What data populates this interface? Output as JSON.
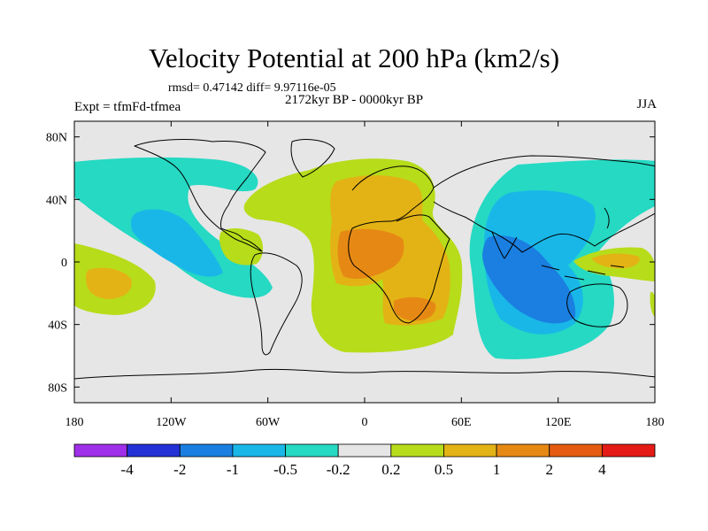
{
  "header": {
    "title": "Velocity Potential at 200 hPa (km2/s)",
    "stats": "rmsd= 0.47142  diff= 9.97116e-05",
    "subtitle": "2172kyr BP - 0000kyr BP",
    "experiment": "Expt = tfmFd-tfmea",
    "season": "JJA"
  },
  "chart_data": {
    "type": "heatmap",
    "title": "Velocity Potential at 200 hPa (km2/s)",
    "projection": "cylindrical-equidistant",
    "xlim": [
      -180,
      180
    ],
    "ylim": [
      -90,
      90
    ],
    "x_ticks": [
      {
        "value": -180,
        "label": "180"
      },
      {
        "value": -120,
        "label": "120W"
      },
      {
        "value": -60,
        "label": "60W"
      },
      {
        "value": 0,
        "label": "0"
      },
      {
        "value": 60,
        "label": "60E"
      },
      {
        "value": 120,
        "label": "120E"
      },
      {
        "value": 180,
        "label": "180"
      }
    ],
    "y_ticks": [
      {
        "value": 80,
        "label": "80N"
      },
      {
        "value": 40,
        "label": "40N"
      },
      {
        "value": 0,
        "label": "0"
      },
      {
        "value": -40,
        "label": "40S"
      },
      {
        "value": -80,
        "label": "80S"
      }
    ],
    "contour_levels": [
      -4,
      -2,
      -1,
      -0.5,
      -0.2,
      0.2,
      0.5,
      1,
      2,
      4
    ],
    "colorbar": {
      "labels": [
        "-4",
        "-2",
        "-1",
        "-0.5",
        "-0.2",
        "0.2",
        "0.5",
        "1",
        "2",
        "4"
      ],
      "colors": [
        "#9f2fe8",
        "#2431d6",
        "#1a7fe0",
        "#19b7e8",
        "#25d9c3",
        "#e6e6e6",
        "#b7dc1a",
        "#e3b315",
        "#e68914",
        "#e55c10",
        "#e41b16"
      ]
    },
    "fields": [
      {
        "name": "negative-pacific-asia",
        "level": -0.2,
        "color": "#25d9c3"
      },
      {
        "name": "negative-asia-core",
        "level": -0.5,
        "color": "#19b7e8"
      },
      {
        "name": "negative-indian-ocean-core",
        "level": -1,
        "color": "#1a7fe0"
      },
      {
        "name": "negative-north-pacific-east",
        "level": -0.2,
        "color": "#25d9c3"
      },
      {
        "name": "negative-east-pacific-core",
        "level": -0.5,
        "color": "#19b7e8"
      },
      {
        "name": "positive-atlantic-africa",
        "level": 0.2,
        "color": "#b7dc1a"
      },
      {
        "name": "positive-africa-core",
        "level": 0.5,
        "color": "#e3b315"
      },
      {
        "name": "positive-sahel-peak",
        "level": 1,
        "color": "#e68914"
      },
      {
        "name": "positive-south-africa",
        "level": 1,
        "color": "#e68914"
      },
      {
        "name": "positive-central-america",
        "level": 0.2,
        "color": "#b7dc1a"
      },
      {
        "name": "positive-south-pacific-west",
        "level": 0.2,
        "color": "#b7dc1a"
      },
      {
        "name": "positive-south-pacific-core",
        "level": 0.5,
        "color": "#e3b315"
      },
      {
        "name": "positive-west-pacific",
        "level": 0.2,
        "color": "#b7dc1a"
      },
      {
        "name": "positive-west-pacific-core",
        "level": 0.5,
        "color": "#e3b315"
      }
    ]
  }
}
